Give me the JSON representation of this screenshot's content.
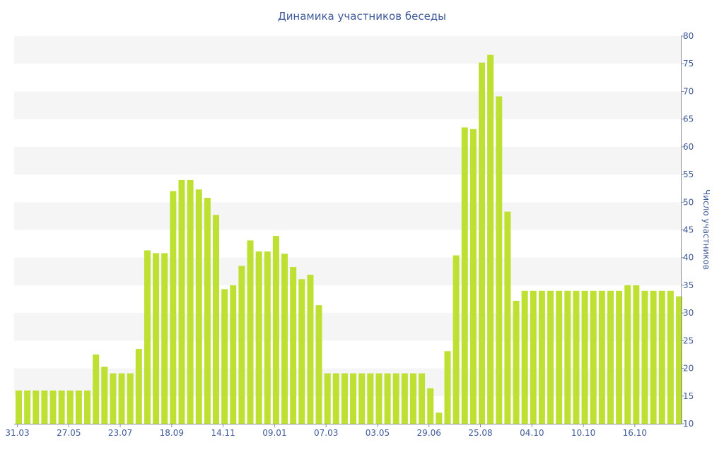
{
  "chart_data": {
    "type": "bar",
    "title": "Динамика участников беседы",
    "xlabel": "",
    "ylabel": "Число участников",
    "ylim": [
      10,
      80
    ],
    "yticks": [
      10,
      15,
      20,
      25,
      30,
      35,
      40,
      45,
      50,
      55,
      60,
      65,
      70,
      75,
      80
    ],
    "y_axis_side": "right",
    "grid": "alternating horizontal bands",
    "x_tick_labels": [
      {
        "label": "31.03",
        "index": 0
      },
      {
        "label": "27.05",
        "index": 6
      },
      {
        "label": "23.07",
        "index": 12
      },
      {
        "label": "18.09",
        "index": 18
      },
      {
        "label": "14.11",
        "index": 24
      },
      {
        "label": "09.01",
        "index": 30
      },
      {
        "label": "07.03",
        "index": 36
      },
      {
        "label": "03.05",
        "index": 42
      },
      {
        "label": "29.06",
        "index": 48
      },
      {
        "label": "25.08",
        "index": 54
      },
      {
        "label": "04.10",
        "index": 60
      },
      {
        "label": "10.10",
        "index": 66
      },
      {
        "label": "16.10",
        "index": 72
      }
    ],
    "bar_color": "#bde033",
    "band_color": "#f5f5f5",
    "text_color": "#3f5a9a",
    "values": [
      16,
      16,
      16,
      16,
      16,
      16,
      16,
      16,
      16,
      22.5,
      20.3,
      19.1,
      19.1,
      19.1,
      23.5,
      41.3,
      40.8,
      40.8,
      52,
      54,
      54,
      52.3,
      50.8,
      47.7,
      34.3,
      35,
      38.5,
      43.1,
      41.1,
      41.1,
      43.9,
      40.7,
      38.3,
      36.1,
      36.9,
      31.4,
      19.1,
      19.1,
      19.1,
      19.1,
      19.1,
      19.1,
      19.1,
      19.1,
      19.1,
      19.1,
      19.1,
      19.1,
      16.4,
      12,
      23.1,
      40.4,
      63.5,
      63.2,
      75.2,
      76.6,
      69.1,
      48.3,
      32.2,
      34,
      34,
      34,
      34,
      34,
      34,
      34,
      34,
      34,
      34,
      34,
      34,
      35,
      35,
      34,
      34,
      34,
      34,
      33
    ]
  }
}
